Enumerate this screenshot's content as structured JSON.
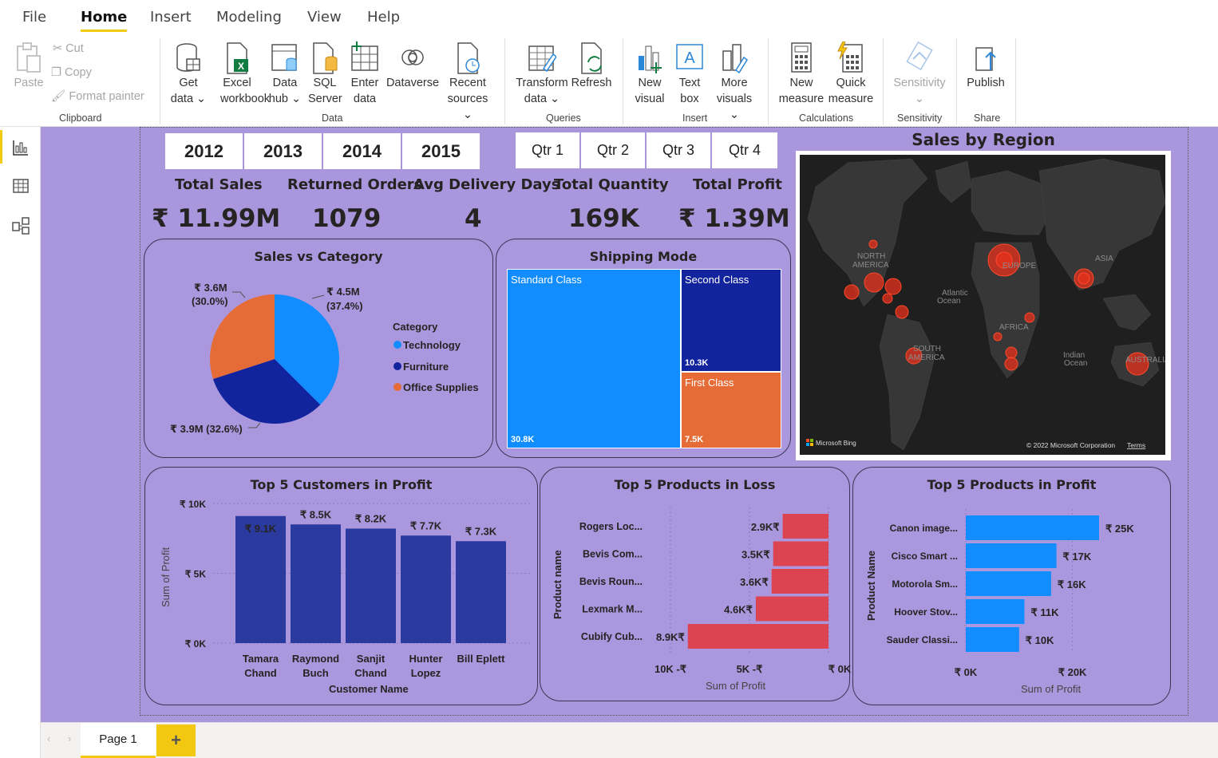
{
  "menu": {
    "tabs": [
      "File",
      "Home",
      "Insert",
      "Modeling",
      "View",
      "Help"
    ],
    "active": "Home"
  },
  "ribbon": {
    "clipboard": {
      "paste": "Paste",
      "cut": "Cut",
      "copy": "Copy",
      "format_painter": "Format painter",
      "group": "Clipboard"
    },
    "data": {
      "get_data": [
        "Get",
        "data"
      ],
      "excel": [
        "Excel",
        "workbook"
      ],
      "data_hub": [
        "Data",
        "hub"
      ],
      "sql": [
        "SQL",
        "Server"
      ],
      "enter": [
        "Enter",
        "data"
      ],
      "dataverse": "Dataverse",
      "recent": [
        "Recent",
        "sources"
      ],
      "group": "Data"
    },
    "queries": {
      "transform": [
        "Transform",
        "data"
      ],
      "refresh": "Refresh",
      "group": "Queries"
    },
    "insert": {
      "new_visual": [
        "New",
        "visual"
      ],
      "text_box": [
        "Text",
        "box"
      ],
      "more_visuals": [
        "More",
        "visuals"
      ],
      "group": "Insert"
    },
    "calculations": {
      "new_measure": [
        "New",
        "measure"
      ],
      "quick_measure": [
        "Quick",
        "measure"
      ],
      "group": "Calculations"
    },
    "sensitivity": {
      "label": "Sensitivity",
      "group": "Sensitivity"
    },
    "share": {
      "publish": "Publish",
      "group": "Share"
    }
  },
  "slicers": {
    "years": [
      "2012",
      "2013",
      "2014",
      "2015"
    ],
    "quarters": [
      "Qtr 1",
      "Qtr 2",
      "Qtr 3",
      "Qtr 4"
    ]
  },
  "kpis": [
    {
      "label": "Total Sales",
      "value": "₹ 11.99M"
    },
    {
      "label": "Returned Orders",
      "value": "1079"
    },
    {
      "label": "Avg Delivery Days",
      "value": "4"
    },
    {
      "label": "Total Quantity",
      "value": "169K"
    },
    {
      "label": "Total Profit",
      "value": "₹ 1.39M"
    }
  ],
  "pie": {
    "title": "Sales vs Category",
    "legend_title": "Category",
    "slices": [
      {
        "name": "Technology",
        "value": 4.5,
        "label": [
          "₹ 4.5M",
          "(37.4%)"
        ],
        "color": "#118dff"
      },
      {
        "name": "Furniture",
        "value": 3.9,
        "label": [
          "₹ 3.9M (32.6%)"
        ],
        "color": "#12239e"
      },
      {
        "name": "Office Supplies",
        "value": 3.6,
        "label": [
          "₹ 3.6M",
          "(30.0%)"
        ],
        "color": "#e66c37"
      }
    ]
  },
  "treemap": {
    "title": "Shipping Mode",
    "items": [
      {
        "name": "Standard Class",
        "value": "30.8K",
        "color": "#118dff"
      },
      {
        "name": "Second Class",
        "value": "10.3K",
        "color": "#12239e"
      },
      {
        "name": "First Class",
        "value": "7.5K",
        "color": "#e66c37"
      }
    ]
  },
  "map": {
    "title": "Sales by Region",
    "labels": [
      "NORTH",
      "AMERICA",
      "Atlantic",
      "Ocean",
      "SOUTH",
      "AMERICA",
      "AFRICA",
      "EUROPE",
      "ASIA",
      "Indian",
      "Ocean",
      "AUSTRALIA"
    ],
    "attribution": "© 2022 Microsoft Corporation",
    "terms": "Terms",
    "bing": "Microsoft Bing"
  },
  "customers": {
    "title": "Top 5 Customers in Profit",
    "ylabel": "Sum of Profit",
    "xlabel": "Customer Name",
    "yticks": [
      "₹ 10K",
      "₹ 5K",
      "₹ 0K"
    ],
    "bars": [
      {
        "name": [
          "Tamara",
          "Chand"
        ],
        "value": 9.1,
        "label": "₹ 9.1K"
      },
      {
        "name": [
          "Raymond",
          "Buch"
        ],
        "value": 8.5,
        "label": "₹ 8.5K"
      },
      {
        "name": [
          "Sanjit",
          "Chand"
        ],
        "value": 8.2,
        "label": "₹ 8.2K"
      },
      {
        "name": [
          "Hunter",
          "Lopez"
        ],
        "value": 7.7,
        "label": "₹ 7.7K"
      },
      {
        "name": [
          "Bill Eplett"
        ],
        "value": 7.3,
        "label": "₹ 7.3K"
      }
    ]
  },
  "loss": {
    "title": "Top 5 Products in Loss",
    "ylabel": "Product name",
    "xlabel": "Sum of Profit",
    "xticks": [
      "10K -₹",
      "5K -₹",
      "₹ 0K"
    ],
    "bars": [
      {
        "name": "Rogers Loc...",
        "value": 2.9,
        "label": "2.9K₹"
      },
      {
        "name": "Bevis Com...",
        "value": 3.5,
        "label": "3.5K₹"
      },
      {
        "name": "Bevis Roun...",
        "value": 3.6,
        "label": "3.6K₹"
      },
      {
        "name": "Lexmark M...",
        "value": 4.6,
        "label": "4.6K₹"
      },
      {
        "name": "Cubify Cub...",
        "value": 8.9,
        "label": "8.9K₹"
      }
    ]
  },
  "profit_products": {
    "title": "Top 5 Products in Profit",
    "ylabel": "Product Name",
    "xlabel": "Sum of Profit",
    "xticks": [
      "₹ 0K",
      "₹ 20K"
    ],
    "bars": [
      {
        "name": "Canon image...",
        "value": 25,
        "label": "₹ 25K"
      },
      {
        "name": "Cisco Smart ...",
        "value": 17,
        "label": "₹ 17K"
      },
      {
        "name": "Motorola Sm...",
        "value": 16,
        "label": "₹ 16K"
      },
      {
        "name": "Hoover Stov...",
        "value": 11,
        "label": "₹ 11K"
      },
      {
        "name": "Sauder Classi...",
        "value": 10,
        "label": "₹ 10K"
      }
    ]
  },
  "pages": {
    "current": "Page 1",
    "add": "+"
  }
}
